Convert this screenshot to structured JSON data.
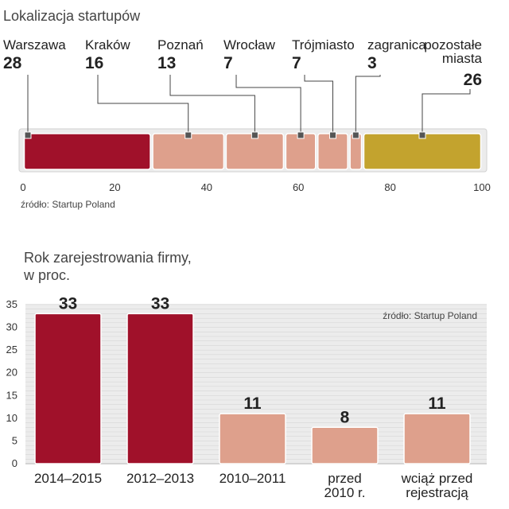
{
  "chart_data": [
    {
      "type": "bar",
      "orientation": "horizontal-stacked",
      "title": "Lokalizacja startupów",
      "source": "źródło: Startup Poland",
      "xlim": [
        0,
        100
      ],
      "xticks": [
        0,
        20,
        40,
        60,
        80,
        100
      ],
      "segments": [
        {
          "label": "Warszawa",
          "value": 28,
          "value_label": "28",
          "color": "#a0112a"
        },
        {
          "label": "Kraków",
          "value": 16,
          "value_label": "16",
          "color": "#dea08c"
        },
        {
          "label": "Poznań",
          "value": 13,
          "value_label": "13",
          "color": "#dea08c"
        },
        {
          "label": "Wrocław",
          "value": 7,
          "value_label": "7",
          "color": "#dea08c"
        },
        {
          "label": "Trójmiasto",
          "value": 7,
          "value_label": "7",
          "color": "#dea08c"
        },
        {
          "label": "zagranica",
          "value": 3,
          "value_label": "3",
          "color": "#dea08c"
        },
        {
          "label": [
            "pozostałe",
            "miasta"
          ],
          "value": 26,
          "value_label": "26",
          "color": "#c3a32e"
        }
      ]
    },
    {
      "type": "bar",
      "title": [
        "Rok zarejestrowania firmy,",
        "w proc."
      ],
      "source": "źródło: Startup Poland",
      "ylim": [
        0,
        35
      ],
      "yticks": [
        0,
        5,
        10,
        15,
        20,
        25,
        30,
        35
      ],
      "grid": true,
      "bars": [
        {
          "label": [
            "2014–2015"
          ],
          "value": 33,
          "value_label": "33",
          "color": "#a0112a"
        },
        {
          "label": [
            "2012–2013"
          ],
          "value": 33,
          "value_label": "33",
          "color": "#a0112a"
        },
        {
          "label": [
            "2010–2011"
          ],
          "value": 11,
          "value_label": "11",
          "color": "#dea08c"
        },
        {
          "label": [
            "przed",
            "2010 r."
          ],
          "value": 8,
          "value_label": "8",
          "color": "#dea08c"
        },
        {
          "label": [
            "wciąż przed",
            "rejestracją"
          ],
          "value": 11,
          "value_label": "11",
          "color": "#dea08c"
        }
      ]
    }
  ]
}
